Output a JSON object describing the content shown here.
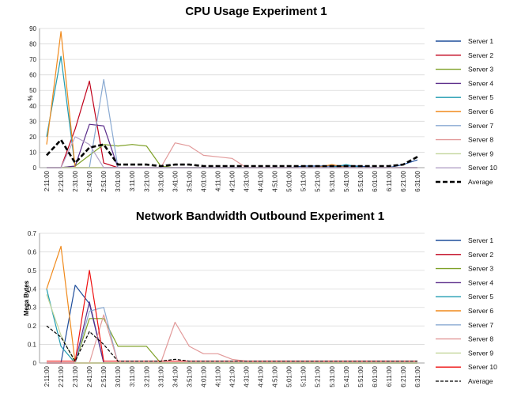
{
  "chart_data": [
    {
      "type": "line",
      "title": "CPU Usage Experiment 1",
      "ylabel": "%",
      "xlabel": "",
      "ylim": [
        0,
        90
      ],
      "yticks": [
        0,
        10,
        20,
        30,
        40,
        50,
        60,
        70,
        80,
        90
      ],
      "grid": true,
      "legend": "right",
      "categories": [
        "2:11:00",
        "2:21:00",
        "2:31:00",
        "2:41:00",
        "2:51:00",
        "3:01:00",
        "3:11:00",
        "3:21:00",
        "3:31:00",
        "3:41:00",
        "3:51:00",
        "4:01:00",
        "4:11:00",
        "4:21:00",
        "4:31:00",
        "4:41:00",
        "4:51:00",
        "5:01:00",
        "5:11:00",
        "5:21:00",
        "5:31:00",
        "5:41:00",
        "5:51:00",
        "6:01:00",
        "6:11:00",
        "6:21:00",
        "6:31:00"
      ],
      "series": [
        {
          "name": "Server 1",
          "color": "#1f4e9c",
          "values": [
            0,
            0,
            0,
            0,
            0,
            0,
            0,
            0,
            0,
            0,
            0,
            0,
            0,
            0,
            0,
            0,
            0,
            0,
            1,
            1,
            1,
            1,
            1,
            0,
            0,
            2,
            5
          ]
        },
        {
          "name": "Server 2",
          "color": "#c0001a",
          "values": [
            0,
            0,
            25,
            56,
            3,
            0,
            0,
            0,
            0,
            0,
            0,
            0,
            0,
            0,
            0,
            0,
            0,
            0,
            0,
            0,
            0,
            0,
            0,
            0,
            0,
            0,
            0
          ]
        },
        {
          "name": "Server 3",
          "color": "#7fa128",
          "values": [
            0,
            0,
            1,
            8,
            15,
            14,
            15,
            14,
            1,
            0,
            0,
            0,
            0,
            0,
            0,
            0,
            0,
            0,
            0,
            0,
            0,
            0,
            0,
            0,
            0,
            0,
            0
          ]
        },
        {
          "name": "Server 4",
          "color": "#5b2d8a",
          "values": [
            0,
            0,
            1,
            28,
            27,
            0,
            0,
            0,
            0,
            0,
            0,
            0,
            0,
            0,
            0,
            0,
            0,
            0,
            0,
            0,
            0,
            0,
            0,
            0,
            0,
            0,
            0
          ]
        },
        {
          "name": "Server 5",
          "color": "#1f9bb0",
          "values": [
            20,
            72,
            0,
            0,
            0,
            0,
            0,
            0,
            0,
            0,
            0,
            0,
            0,
            0,
            0,
            0,
            0,
            0,
            0,
            0,
            0,
            2,
            0,
            0,
            0,
            0,
            0
          ]
        },
        {
          "name": "Server 6",
          "color": "#f08a1c",
          "values": [
            15,
            88,
            0,
            0,
            0,
            0,
            0,
            0,
            0,
            0,
            0,
            0,
            0,
            0,
            0,
            0,
            0,
            0,
            0,
            0,
            2,
            0,
            0,
            0,
            0,
            0,
            0
          ]
        },
        {
          "name": "Server 7",
          "color": "#8aaad2",
          "values": [
            0,
            0,
            0,
            0,
            57,
            0,
            0,
            0,
            0,
            0,
            0,
            0,
            0,
            0,
            0,
            0,
            0,
            0,
            0,
            0,
            0,
            0,
            0,
            0,
            0,
            0,
            0
          ]
        },
        {
          "name": "Server 8",
          "color": "#e29a9a",
          "values": [
            0,
            0,
            0,
            0,
            0,
            0,
            0,
            0,
            0,
            16,
            14,
            8,
            7,
            6,
            0,
            0,
            0,
            0,
            0,
            0,
            0,
            0,
            0,
            0,
            0,
            0,
            0
          ]
        },
        {
          "name": "Server 9",
          "color": "#c3d69b",
          "values": [
            0,
            0,
            0,
            0,
            0,
            0,
            0,
            0,
            0,
            0,
            0,
            0,
            0,
            0,
            0,
            0,
            0,
            0,
            0,
            0,
            0,
            0,
            0,
            0,
            0,
            0,
            0
          ]
        },
        {
          "name": "Server 10",
          "color": "#b3a2c7",
          "values": [
            0,
            0,
            20,
            15,
            0,
            0,
            0,
            0,
            0,
            0,
            0,
            0,
            0,
            0,
            0,
            0,
            0,
            0,
            0,
            0,
            0,
            0,
            0,
            0,
            0,
            0,
            0
          ]
        },
        {
          "name": "Average",
          "color": "#000000",
          "dashed": true,
          "values": [
            8,
            18,
            3,
            13,
            15,
            2,
            2,
            2,
            1,
            2,
            2,
            1,
            1,
            1,
            1,
            1,
            1,
            1,
            1,
            1,
            1,
            1,
            1,
            1,
            1,
            2,
            7
          ]
        }
      ]
    },
    {
      "type": "line",
      "title": "Network Bandwidth Outbound Experiment 1",
      "ylabel": "Mega Bytes",
      "xlabel": "",
      "ylim": [
        0,
        0.7
      ],
      "yticks": [
        0,
        0.1,
        0.2,
        0.3,
        0.4,
        0.5,
        0.6,
        0.7
      ],
      "grid": true,
      "legend": "right",
      "categories": [
        "2:11:00",
        "2:21:00",
        "2:31:00",
        "2:41:00",
        "2:51:00",
        "3:01:00",
        "3:11:00",
        "3:21:00",
        "3:31:00",
        "3:41:00",
        "3:51:00",
        "4:01:00",
        "4:11:00",
        "4:21:00",
        "4:31:00",
        "4:41:00",
        "4:51:00",
        "5:01:00",
        "5:11:00",
        "5:21:00",
        "5:31:00",
        "5:41:00",
        "5:51:00",
        "6:01:00",
        "6:11:00",
        "6:21:00",
        "6:31:00"
      ],
      "series": [
        {
          "name": "Server 1",
          "color": "#1f4e9c",
          "values": [
            0,
            0,
            0.42,
            0.32,
            0,
            0,
            0,
            0,
            0,
            0,
            0,
            0,
            0,
            0,
            0,
            0,
            0,
            0,
            0,
            0,
            0,
            0,
            0,
            0,
            0,
            0,
            0
          ]
        },
        {
          "name": "Server 2",
          "color": "#c0001a",
          "values": [
            0,
            0,
            0,
            0,
            0,
            0,
            0,
            0,
            0,
            0,
            0,
            0,
            0,
            0,
            0,
            0,
            0,
            0,
            0,
            0,
            0,
            0,
            0,
            0,
            0,
            0,
            0
          ]
        },
        {
          "name": "Server 3",
          "color": "#7fa128",
          "values": [
            0,
            0,
            0,
            0.24,
            0.24,
            0.09,
            0.09,
            0.09,
            0,
            0,
            0,
            0,
            0,
            0,
            0,
            0,
            0,
            0,
            0,
            0,
            0,
            0,
            0,
            0,
            0,
            0,
            0
          ]
        },
        {
          "name": "Server 4",
          "color": "#5b2d8a",
          "values": [
            0,
            0,
            0,
            0.33,
            0,
            0,
            0,
            0,
            0,
            0,
            0,
            0,
            0,
            0,
            0,
            0,
            0,
            0,
            0,
            0,
            0,
            0,
            0,
            0,
            0,
            0,
            0
          ]
        },
        {
          "name": "Server 5",
          "color": "#1f9bb0",
          "values": [
            0.4,
            0.09,
            0,
            0,
            0,
            0,
            0,
            0,
            0,
            0,
            0,
            0,
            0,
            0,
            0,
            0,
            0,
            0,
            0,
            0,
            0,
            0,
            0,
            0,
            0,
            0,
            0
          ]
        },
        {
          "name": "Server 6",
          "color": "#f08a1c",
          "values": [
            0.4,
            0.63,
            0,
            0,
            0,
            0,
            0,
            0,
            0,
            0,
            0,
            0,
            0,
            0,
            0,
            0,
            0,
            0,
            0,
            0,
            0,
            0,
            0,
            0,
            0,
            0,
            0
          ]
        },
        {
          "name": "Server 7",
          "color": "#8aaad2",
          "values": [
            0,
            0,
            0,
            0.28,
            0.3,
            0,
            0,
            0,
            0,
            0,
            0,
            0,
            0,
            0,
            0,
            0,
            0,
            0,
            0,
            0,
            0,
            0,
            0,
            0,
            0,
            0,
            0
          ]
        },
        {
          "name": "Server 8",
          "color": "#e29a9a",
          "values": [
            0,
            0,
            0,
            0,
            0.26,
            0,
            0,
            0,
            0,
            0.22,
            0.09,
            0.05,
            0.05,
            0.02,
            0.01,
            0.01,
            0.01,
            0.01,
            0.01,
            0.01,
            0.01,
            0.01,
            0.01,
            0.01,
            0.01,
            0.01,
            0.01
          ]
        },
        {
          "name": "Server 9",
          "color": "#c3d69b",
          "values": [
            0.37,
            0.15,
            0,
            0,
            0,
            0,
            0,
            0,
            0,
            0,
            0,
            0,
            0,
            0,
            0,
            0,
            0,
            0,
            0,
            0,
            0,
            0,
            0,
            0,
            0,
            0,
            0
          ]
        },
        {
          "name": "Server 10",
          "color": "#ee1111",
          "values": [
            0.01,
            0.01,
            0.01,
            0.5,
            0.01,
            0.01,
            0.01,
            0.01,
            0.01,
            0.01,
            0.01,
            0.01,
            0.01,
            0.01,
            0.01,
            0.01,
            0.01,
            0.01,
            0.01,
            0.01,
            0.01,
            0.01,
            0.01,
            0.01,
            0.01,
            0.01,
            0.01
          ]
        },
        {
          "name": "Average",
          "color": "#000000",
          "dashed": true,
          "values": [
            0.2,
            0.14,
            0.01,
            0.17,
            0.1,
            0.01,
            0.01,
            0.01,
            0.01,
            0.02,
            0.01,
            0.01,
            0.01,
            0.01,
            0.01,
            0.01,
            0.01,
            0.01,
            0.01,
            0.01,
            0.01,
            0.01,
            0.01,
            0.01,
            0.01,
            0.01,
            0.01
          ]
        }
      ]
    }
  ]
}
